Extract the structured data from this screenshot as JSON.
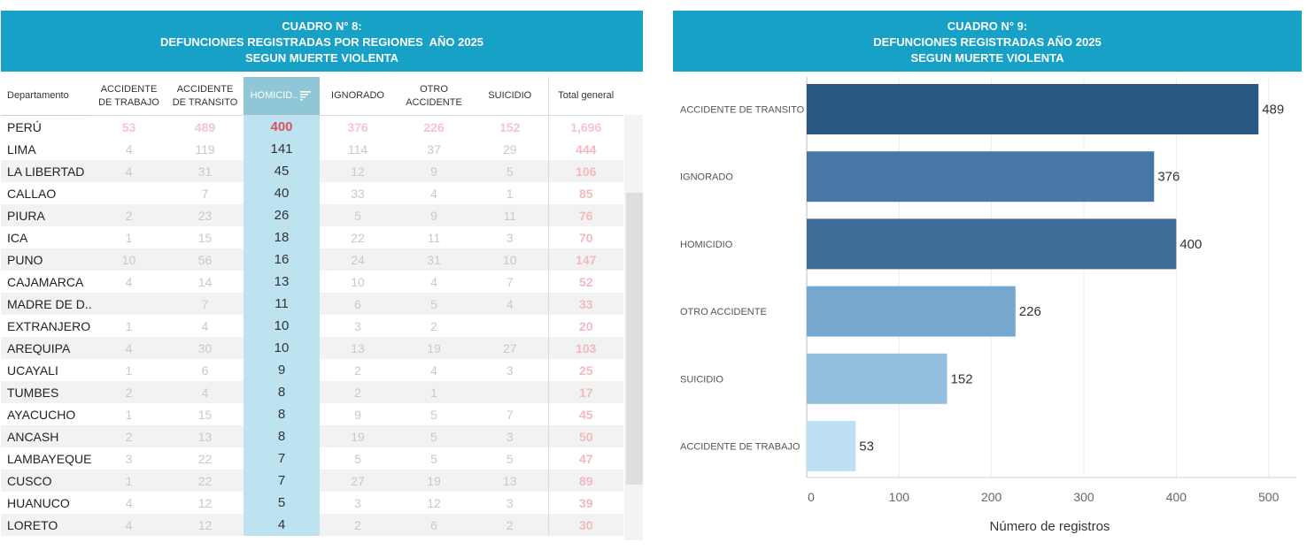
{
  "table_panel": {
    "title_lines": [
      "CUADRO N° 8:",
      "DEFUNCIONES REGISTRADAS POR REGIONES  AÑO 2025",
      "SEGUN MUERTE VIOLENTA"
    ],
    "columns": [
      "Departamento",
      "ACCIDENTE\nDE TRABAJO",
      "ACCIDENTE\nDE TRANSITO",
      "HOMICID..",
      "IGNORADO",
      "OTRO\nACCIDENTE",
      "SUICIDIO",
      "Total general"
    ],
    "sorted_column": "HOMICID..",
    "rows": [
      {
        "dep": "PERÚ",
        "vals": [
          "53",
          "489",
          "400",
          "376",
          "226",
          "152",
          "1,696"
        ]
      },
      {
        "dep": "LIMA",
        "vals": [
          "4",
          "119",
          "141",
          "114",
          "37",
          "29",
          "444"
        ]
      },
      {
        "dep": "LA LIBERTAD",
        "vals": [
          "4",
          "31",
          "45",
          "12",
          "9",
          "5",
          "106"
        ]
      },
      {
        "dep": "CALLAO",
        "vals": [
          "",
          "7",
          "40",
          "33",
          "4",
          "1",
          "85"
        ]
      },
      {
        "dep": "PIURA",
        "vals": [
          "2",
          "23",
          "26",
          "5",
          "9",
          "11",
          "76"
        ]
      },
      {
        "dep": "ICA",
        "vals": [
          "1",
          "15",
          "18",
          "22",
          "11",
          "3",
          "70"
        ]
      },
      {
        "dep": "PUNO",
        "vals": [
          "10",
          "56",
          "16",
          "24",
          "31",
          "10",
          "147"
        ]
      },
      {
        "dep": "CAJAMARCA",
        "vals": [
          "4",
          "14",
          "13",
          "10",
          "4",
          "7",
          "52"
        ]
      },
      {
        "dep": "MADRE DE D..",
        "vals": [
          "",
          "7",
          "11",
          "6",
          "5",
          "4",
          "33"
        ]
      },
      {
        "dep": "EXTRANJERO",
        "vals": [
          "1",
          "4",
          "10",
          "3",
          "2",
          "",
          "20"
        ]
      },
      {
        "dep": "AREQUIPA",
        "vals": [
          "4",
          "30",
          "10",
          "13",
          "19",
          "27",
          "103"
        ]
      },
      {
        "dep": "UCAYALI",
        "vals": [
          "1",
          "6",
          "9",
          "2",
          "4",
          "3",
          "25"
        ]
      },
      {
        "dep": "TUMBES",
        "vals": [
          "2",
          "4",
          "8",
          "2",
          "1",
          "",
          "17"
        ]
      },
      {
        "dep": "AYACUCHO",
        "vals": [
          "1",
          "15",
          "8",
          "9",
          "5",
          "7",
          "45"
        ]
      },
      {
        "dep": "ANCASH",
        "vals": [
          "2",
          "13",
          "8",
          "19",
          "5",
          "3",
          "50"
        ]
      },
      {
        "dep": "LAMBAYEQUE",
        "vals": [
          "3",
          "22",
          "7",
          "5",
          "5",
          "5",
          "47"
        ]
      },
      {
        "dep": "CUSCO",
        "vals": [
          "1",
          "22",
          "7",
          "27",
          "19",
          "13",
          "89"
        ]
      },
      {
        "dep": "HUANUCO",
        "vals": [
          "4",
          "12",
          "5",
          "3",
          "12",
          "3",
          "39"
        ]
      },
      {
        "dep": "LORETO",
        "vals": [
          "4",
          "12",
          "4",
          "2",
          "6",
          "2",
          "30"
        ]
      }
    ]
  },
  "chart_panel": {
    "title_lines": [
      "CUADRO N° 9:",
      "DEFUNCIONES REGISTRADAS AÑO 2025",
      "SEGUN MUERTE VIOLENTA"
    ]
  },
  "chart_data": {
    "type": "bar",
    "orientation": "horizontal",
    "categories": [
      "ACCIDENTE DE TRANSITO",
      "IGNORADO",
      "HOMICIDIO",
      "OTRO ACCIDENTE",
      "SUICIDIO",
      "ACCIDENTE DE TRABAJO"
    ],
    "values": [
      489,
      376,
      400,
      226,
      152,
      53
    ],
    "colors": [
      "#2b5783",
      "#4677a5",
      "#3f6c99",
      "#76a8cf",
      "#93c0df",
      "#bde0f2"
    ],
    "xlabel": "Número de registros",
    "xlim": [
      0,
      530
    ],
    "xticks": [
      0,
      100,
      200,
      300,
      400,
      500
    ],
    "grid": true
  }
}
